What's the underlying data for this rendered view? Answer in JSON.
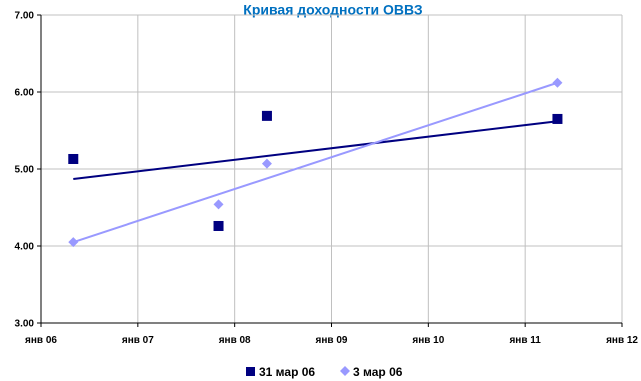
{
  "chart_data": {
    "type": "scatter",
    "title": "Кривая доходности ОВВЗ",
    "x_ticks": [
      "янв 06",
      "янв 07",
      "янв 08",
      "янв 09",
      "янв 10",
      "янв 11",
      "янв 12"
    ],
    "y_ticks": [
      "3.00",
      "4.00",
      "5.00",
      "6.00",
      "7.00"
    ],
    "xlim": [
      "2006-01",
      "2012-01"
    ],
    "ylim": [
      3.0,
      7.0
    ],
    "grid": true,
    "legend_position": "bottom",
    "series": [
      {
        "name": "31 мар 06",
        "marker": "square",
        "color": "#000080",
        "trendline": true,
        "points": [
          {
            "x": "2006-05",
            "y": 5.13
          },
          {
            "x": "2007-11",
            "y": 4.26
          },
          {
            "x": "2008-05",
            "y": 5.69
          },
          {
            "x": "2011-05",
            "y": 5.65
          }
        ],
        "trend": [
          {
            "x": "2006-05",
            "y": 4.87
          },
          {
            "x": "2011-05",
            "y": 5.62
          }
        ]
      },
      {
        "name": "3 мар 06",
        "marker": "diamond",
        "color": "#9999ff",
        "trendline": true,
        "points": [
          {
            "x": "2006-05",
            "y": 4.05
          },
          {
            "x": "2007-11",
            "y": 4.54
          },
          {
            "x": "2008-05",
            "y": 5.07
          },
          {
            "x": "2011-05",
            "y": 6.12
          }
        ],
        "trend": [
          {
            "x": "2006-05",
            "y": 4.05
          },
          {
            "x": "2011-05",
            "y": 6.12
          }
        ]
      }
    ]
  },
  "colors": {
    "title": "#0070c0",
    "axis": "#000000",
    "grid": "#c0c0c0"
  }
}
